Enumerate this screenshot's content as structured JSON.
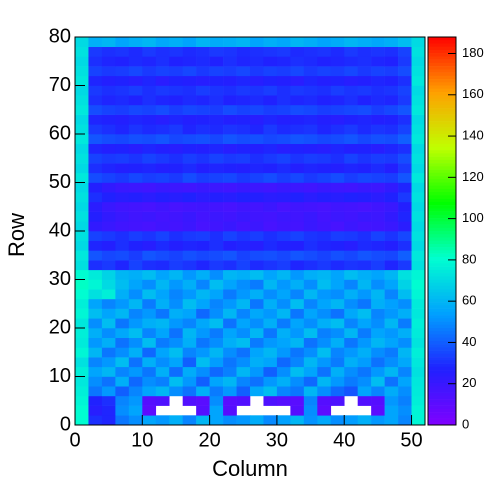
{
  "chart_data": {
    "type": "heatmap",
    "x_label": "Column",
    "y_label": "Row",
    "xbins": [
      0,
      2,
      4,
      6,
      8,
      10,
      12,
      14,
      16,
      18,
      20,
      22,
      24,
      26,
      28,
      30,
      32,
      34,
      36,
      38,
      40,
      42,
      44,
      46,
      48,
      50,
      52
    ],
    "ybins": [
      0,
      2,
      4,
      6,
      8,
      10,
      12,
      14,
      16,
      18,
      20,
      22,
      24,
      26,
      28,
      30,
      32,
      34,
      36,
      38,
      40,
      42,
      44,
      46,
      48,
      50,
      52,
      54,
      56,
      58,
      60,
      62,
      64,
      66,
      68,
      70,
      72,
      74,
      76,
      78,
      80
    ],
    "xlim": [
      0,
      52
    ],
    "ylim": [
      0,
      80
    ],
    "zlim": [
      0,
      188
    ],
    "xticks": [
      0,
      10,
      20,
      30,
      40,
      50
    ],
    "yticks": [
      0,
      10,
      20,
      30,
      40,
      50,
      60,
      70,
      80
    ],
    "zticks": [
      0,
      20,
      40,
      60,
      80,
      100,
      120,
      140,
      160,
      180
    ],
    "colormap": [
      "#8000ff",
      "#2020ff",
      "#00a0ff",
      "#00ffd0",
      "#00ff00",
      "#c0ff00",
      "#ffa000",
      "#ff0000"
    ],
    "values": [
      [
        80,
        30,
        28,
        45,
        50,
        55,
        52,
        58,
        48,
        60,
        55,
        50,
        52,
        57,
        49,
        54,
        60,
        51,
        56,
        50,
        53,
        58,
        52,
        55,
        48,
        78
      ],
      [
        80,
        25,
        28,
        50,
        55,
        10,
        null,
        null,
        null,
        12,
        55,
        12,
        null,
        null,
        null,
        null,
        12,
        50,
        10,
        null,
        null,
        null,
        10,
        55,
        50,
        78
      ],
      [
        78,
        27,
        30,
        48,
        52,
        12,
        14,
        null,
        13,
        11,
        50,
        11,
        13,
        null,
        14,
        12,
        11,
        48,
        12,
        14,
        null,
        13,
        12,
        52,
        47,
        76
      ],
      [
        76,
        45,
        52,
        40,
        48,
        55,
        60,
        50,
        44,
        58,
        46,
        52,
        40,
        56,
        62,
        48,
        45,
        60,
        50,
        42,
        38,
        55,
        48,
        57,
        50,
        75
      ],
      [
        74,
        50,
        44,
        58,
        42,
        50,
        47,
        62,
        52,
        40,
        55,
        60,
        48,
        44,
        52,
        58,
        50,
        42,
        60,
        52,
        46,
        50,
        62,
        44,
        55,
        74
      ],
      [
        76,
        55,
        60,
        48,
        52,
        45,
        58,
        43,
        57,
        50,
        42,
        47,
        60,
        52,
        40,
        50,
        62,
        55,
        44,
        58,
        50,
        45,
        52,
        60,
        48,
        72
      ],
      [
        72,
        48,
        52,
        62,
        44,
        58,
        50,
        55,
        40,
        62,
        53,
        45,
        50,
        58,
        55,
        42,
        48,
        60,
        52,
        46,
        58,
        53,
        44,
        50,
        56,
        74
      ],
      [
        78,
        60,
        45,
        50,
        58,
        42,
        55,
        62,
        48,
        52,
        60,
        50,
        44,
        55,
        60,
        52,
        45,
        50,
        62,
        48,
        52,
        58,
        50,
        46,
        60,
        76
      ],
      [
        75,
        52,
        58,
        44,
        50,
        62,
        46,
        50,
        58,
        45,
        50,
        58,
        62,
        46,
        52,
        55,
        60,
        44,
        50,
        58,
        45,
        52,
        60,
        55,
        50,
        73
      ],
      [
        76,
        58,
        50,
        56,
        62,
        48,
        55,
        44,
        60,
        52,
        46,
        55,
        50,
        60,
        45,
        58,
        52,
        62,
        47,
        50,
        60,
        46,
        55,
        52,
        58,
        75
      ],
      [
        74,
        50,
        62,
        45,
        52,
        58,
        60,
        52,
        48,
        56,
        62,
        44,
        55,
        50,
        58,
        46,
        55,
        50,
        58,
        62,
        48,
        55,
        50,
        60,
        46,
        76
      ],
      [
        78,
        62,
        55,
        60,
        48,
        52,
        45,
        58,
        55,
        42,
        50,
        60,
        48,
        56,
        52,
        60,
        45,
        55,
        50,
        44,
        56,
        62,
        48,
        52,
        58,
        74
      ],
      [
        76,
        55,
        48,
        52,
        60,
        46,
        58,
        50,
        62,
        55,
        48,
        52,
        60,
        45,
        58,
        50,
        62,
        48,
        55,
        60,
        50,
        45,
        58,
        54,
        50,
        75
      ],
      [
        80,
        72,
        76,
        58,
        50,
        62,
        55,
        48,
        52,
        60,
        55,
        46,
        52,
        58,
        50,
        55,
        48,
        60,
        52,
        50,
        58,
        52,
        60,
        48,
        62,
        78
      ],
      [
        82,
        78,
        70,
        62,
        55,
        50,
        60,
        52,
        58,
        48,
        62,
        55,
        50,
        46,
        60,
        52,
        58,
        50,
        62,
        55,
        48,
        60,
        50,
        55,
        68,
        80
      ],
      [
        80,
        75,
        68,
        60,
        58,
        62,
        55,
        60,
        52,
        58,
        50,
        60,
        58,
        62,
        55,
        60,
        52,
        58,
        60,
        55,
        62,
        58,
        55,
        60,
        72,
        78
      ],
      [
        72,
        30,
        32,
        28,
        34,
        30,
        29,
        33,
        31,
        28,
        32,
        30,
        34,
        29,
        31,
        33,
        28,
        30,
        32,
        29,
        31,
        30,
        33,
        28,
        32,
        72
      ],
      [
        74,
        38,
        35,
        36,
        33,
        38,
        36,
        34,
        37,
        35,
        36,
        38,
        34,
        36,
        37,
        35,
        38,
        36,
        34,
        37,
        35,
        38,
        36,
        35,
        40,
        74
      ],
      [
        70,
        28,
        26,
        30,
        27,
        25,
        29,
        26,
        28,
        27,
        30,
        26,
        28,
        25,
        29,
        27,
        26,
        30,
        28,
        27,
        25,
        29,
        28,
        26,
        30,
        70
      ],
      [
        72,
        34,
        32,
        30,
        33,
        31,
        34,
        30,
        32,
        33,
        30,
        34,
        31,
        33,
        30,
        32,
        34,
        31,
        30,
        33,
        32,
        30,
        34,
        31,
        35,
        72
      ],
      [
        70,
        22,
        20,
        18,
        17,
        16,
        18,
        17,
        19,
        16,
        18,
        20,
        17,
        19,
        16,
        18,
        17,
        20,
        18,
        16,
        19,
        17,
        18,
        20,
        24,
        70
      ],
      [
        72,
        26,
        22,
        20,
        18,
        19,
        17,
        18,
        20,
        17,
        19,
        18,
        20,
        18,
        17,
        19,
        18,
        20,
        17,
        19,
        18,
        20,
        19,
        22,
        28,
        72
      ],
      [
        70,
        24,
        20,
        18,
        17,
        16,
        18,
        16,
        17,
        18,
        17,
        16,
        18,
        17,
        19,
        16,
        18,
        17,
        16,
        18,
        17,
        16,
        18,
        20,
        26,
        70
      ],
      [
        72,
        30,
        27,
        25,
        26,
        24,
        26,
        25,
        27,
        24,
        26,
        25,
        27,
        26,
        24,
        25,
        27,
        24,
        26,
        25,
        27,
        26,
        24,
        27,
        32,
        72
      ],
      [
        70,
        26,
        22,
        20,
        19,
        18,
        20,
        19,
        18,
        20,
        19,
        18,
        20,
        19,
        18,
        20,
        19,
        18,
        20,
        19,
        18,
        20,
        19,
        22,
        28,
        70
      ],
      [
        74,
        36,
        34,
        32,
        35,
        33,
        34,
        32,
        36,
        33,
        34,
        35,
        32,
        34,
        36,
        33,
        35,
        32,
        34,
        36,
        33,
        35,
        34,
        33,
        38,
        74
      ],
      [
        70,
        30,
        28,
        26,
        27,
        28,
        26,
        27,
        29,
        26,
        28,
        27,
        26,
        28,
        27,
        29,
        26,
        28,
        27,
        26,
        28,
        27,
        29,
        26,
        32,
        70
      ],
      [
        72,
        34,
        32,
        33,
        31,
        34,
        32,
        30,
        33,
        31,
        34,
        32,
        33,
        30,
        32,
        34,
        31,
        33,
        32,
        30,
        34,
        31,
        33,
        32,
        36,
        72
      ],
      [
        70,
        28,
        26,
        27,
        25,
        28,
        26,
        25,
        27,
        26,
        28,
        25,
        27,
        26,
        28,
        25,
        27,
        26,
        25,
        28,
        26,
        27,
        25,
        28,
        30,
        70
      ],
      [
        74,
        38,
        36,
        35,
        37,
        36,
        38,
        35,
        36,
        37,
        35,
        38,
        36,
        37,
        35,
        36,
        38,
        37,
        35,
        36,
        38,
        35,
        37,
        36,
        40,
        74
      ],
      [
        72,
        32,
        30,
        28,
        31,
        29,
        30,
        32,
        28,
        30,
        29,
        31,
        30,
        28,
        32,
        29,
        30,
        31,
        28,
        30,
        32,
        29,
        31,
        30,
        34,
        72
      ],
      [
        70,
        28,
        27,
        26,
        28,
        27,
        25,
        28,
        26,
        27,
        28,
        26,
        27,
        25,
        28,
        26,
        27,
        28,
        26,
        25,
        27,
        28,
        26,
        27,
        30,
        70
      ],
      [
        74,
        36,
        34,
        33,
        35,
        34,
        36,
        33,
        35,
        34,
        33,
        36,
        34,
        35,
        33,
        34,
        36,
        35,
        33,
        34,
        35,
        36,
        33,
        35,
        38,
        74
      ],
      [
        72,
        30,
        28,
        29,
        27,
        30,
        28,
        27,
        29,
        28,
        30,
        27,
        28,
        29,
        27,
        30,
        28,
        29,
        27,
        28,
        30,
        27,
        29,
        28,
        32,
        72
      ],
      [
        70,
        32,
        30,
        31,
        33,
        30,
        32,
        31,
        30,
        33,
        31,
        30,
        32,
        31,
        33,
        30,
        32,
        31,
        30,
        33,
        31,
        32,
        30,
        31,
        34,
        70
      ],
      [
        74,
        28,
        26,
        27,
        25,
        28,
        24,
        27,
        26,
        25,
        27,
        26,
        28,
        25,
        27,
        26,
        24,
        28,
        26,
        27,
        25,
        26,
        28,
        27,
        30,
        74
      ],
      [
        72,
        34,
        32,
        33,
        35,
        32,
        34,
        33,
        35,
        32,
        34,
        33,
        35,
        32,
        34,
        33,
        35,
        32,
        34,
        33,
        35,
        32,
        34,
        33,
        36,
        72
      ],
      [
        70,
        30,
        28,
        27,
        29,
        28,
        30,
        27,
        28,
        29,
        27,
        30,
        28,
        29,
        27,
        28,
        30,
        29,
        27,
        28,
        29,
        30,
        28,
        27,
        32,
        70
      ],
      [
        72,
        32,
        30,
        31,
        29,
        32,
        30,
        31,
        29,
        30,
        32,
        31,
        29,
        30,
        31,
        32,
        29,
        30,
        31,
        29,
        32,
        30,
        31,
        30,
        34,
        72
      ],
      [
        70,
        58,
        60,
        55,
        58,
        60,
        56,
        58,
        55,
        60,
        57,
        58,
        60,
        55,
        58,
        56,
        60,
        58,
        55,
        57,
        60,
        58,
        56,
        58,
        62,
        70
      ]
    ]
  }
}
